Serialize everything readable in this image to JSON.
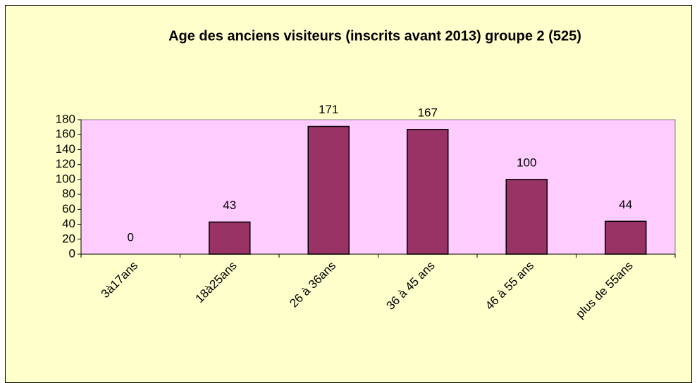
{
  "chart_data": {
    "type": "bar",
    "title": "Age des anciens visiteurs (inscrits avant 2013) groupe 2 (525)",
    "categories": [
      "3à17ans",
      "18à25ans",
      "26 à 36ans",
      "36 à 45 ans",
      "46 à 55 ans",
      "plus de 55ans"
    ],
    "values": [
      0,
      43,
      171,
      167,
      100,
      44
    ],
    "color": "#993366",
    "ylim": [
      0,
      180
    ],
    "yticks": [
      0,
      20,
      40,
      60,
      80,
      100,
      120,
      140,
      160,
      180
    ],
    "grid": false
  }
}
